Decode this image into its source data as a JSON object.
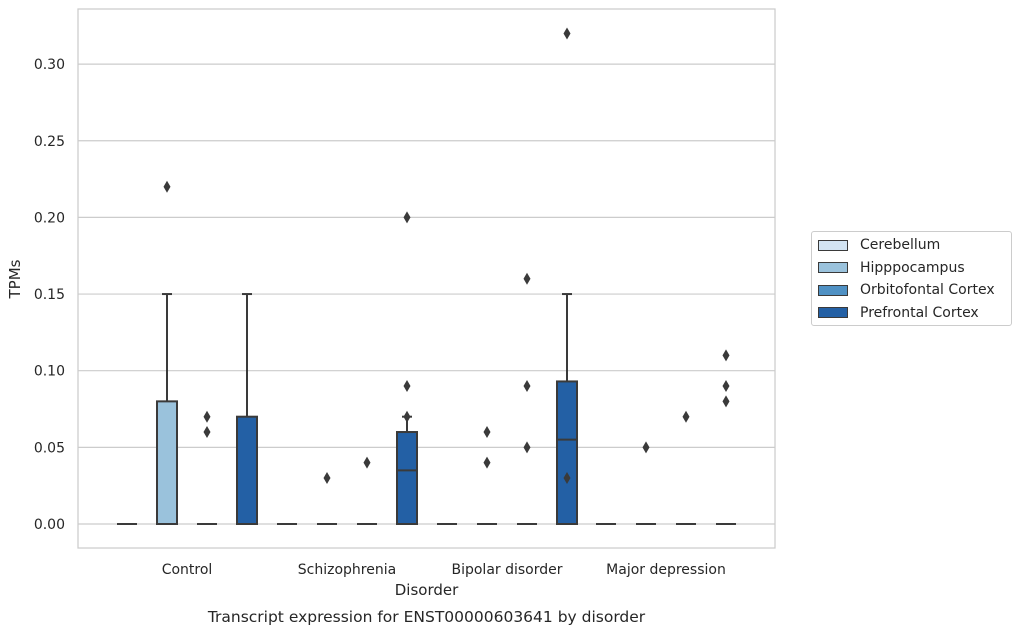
{
  "chart_data": {
    "type": "box",
    "title": "Transcript expression for ENST00000603641 by disorder",
    "xlabel": "Disorder",
    "ylabel": "TPMs",
    "ylim": [
      -0.016,
      0.337
    ],
    "yticks": [
      "0.00",
      "0.05",
      "0.10",
      "0.15",
      "0.20",
      "0.25",
      "0.30"
    ],
    "categories": [
      "Control",
      "Schizophrenia",
      "Bipolar disorder",
      "Major depression"
    ],
    "grid": true,
    "legend_position": "right",
    "series": [
      {
        "name": "Cerebellum",
        "color": "#d3e4f3",
        "boxes": [
          {
            "category": "Control",
            "q1": 0,
            "median": 0,
            "q3": 0,
            "whisker_low": 0,
            "whisker_high": 0,
            "outliers": []
          },
          {
            "category": "Schizophrenia",
            "q1": 0,
            "median": 0,
            "q3": 0,
            "whisker_low": 0,
            "whisker_high": 0,
            "outliers": []
          },
          {
            "category": "Bipolar disorder",
            "q1": 0,
            "median": 0,
            "q3": 0,
            "whisker_low": 0,
            "whisker_high": 0,
            "outliers": []
          },
          {
            "category": "Major depression",
            "q1": 0,
            "median": 0,
            "q3": 0,
            "whisker_low": 0,
            "whisker_high": 0,
            "outliers": []
          }
        ]
      },
      {
        "name": "Hipppocampus",
        "color": "#9ac2dc",
        "boxes": [
          {
            "category": "Control",
            "q1": 0,
            "median": 0,
            "q3": 0.08,
            "whisker_low": 0,
            "whisker_high": 0.15,
            "outliers": [
              0.22
            ]
          },
          {
            "category": "Schizophrenia",
            "q1": 0,
            "median": 0,
            "q3": 0,
            "whisker_low": 0,
            "whisker_high": 0,
            "outliers": [
              0.03
            ]
          },
          {
            "category": "Bipolar disorder",
            "q1": 0,
            "median": 0,
            "q3": 0,
            "whisker_low": 0,
            "whisker_high": 0,
            "outliers": [
              0.06,
              0.04
            ]
          },
          {
            "category": "Major depression",
            "q1": 0,
            "median": 0,
            "q3": 0,
            "whisker_low": 0,
            "whisker_high": 0,
            "outliers": [
              0.05
            ]
          }
        ]
      },
      {
        "name": "Orbitofontal Cortex",
        "color": "#4f91c4",
        "boxes": [
          {
            "category": "Control",
            "q1": 0,
            "median": 0,
            "q3": 0,
            "whisker_low": 0,
            "whisker_high": 0,
            "outliers": [
              0.07,
              0.06
            ]
          },
          {
            "category": "Schizophrenia",
            "q1": 0,
            "median": 0,
            "q3": 0,
            "whisker_low": 0,
            "whisker_high": 0,
            "outliers": [
              0.04
            ]
          },
          {
            "category": "Bipolar disorder",
            "q1": 0,
            "median": 0,
            "q3": 0,
            "whisker_low": 0,
            "whisker_high": 0,
            "outliers": [
              0.16,
              0.09,
              0.05
            ]
          },
          {
            "category": "Major depression",
            "q1": 0,
            "median": 0,
            "q3": 0,
            "whisker_low": 0,
            "whisker_high": 0,
            "outliers": [
              0.07
            ]
          }
        ]
      },
      {
        "name": "Prefrontal Cortex",
        "color": "#2360a5",
        "boxes": [
          {
            "category": "Control",
            "q1": 0,
            "median": 0,
            "q3": 0.07,
            "whisker_low": 0,
            "whisker_high": 0.15,
            "outliers": []
          },
          {
            "category": "Schizophrenia",
            "q1": 0,
            "median": 0.035,
            "q3": 0.06,
            "whisker_low": 0,
            "whisker_high": 0.07,
            "outliers": [
              0.09,
              0.07,
              0.2
            ]
          },
          {
            "category": "Bipolar disorder",
            "q1": 0,
            "median": 0.055,
            "q3": 0.093,
            "whisker_low": 0,
            "whisker_high": 0.15,
            "outliers": [
              0.03,
              0.32
            ]
          },
          {
            "category": "Major depression",
            "q1": 0,
            "median": 0,
            "q3": 0,
            "whisker_low": 0,
            "whisker_high": 0,
            "outliers": [
              0.11,
              0.09,
              0.08
            ]
          }
        ]
      }
    ]
  }
}
